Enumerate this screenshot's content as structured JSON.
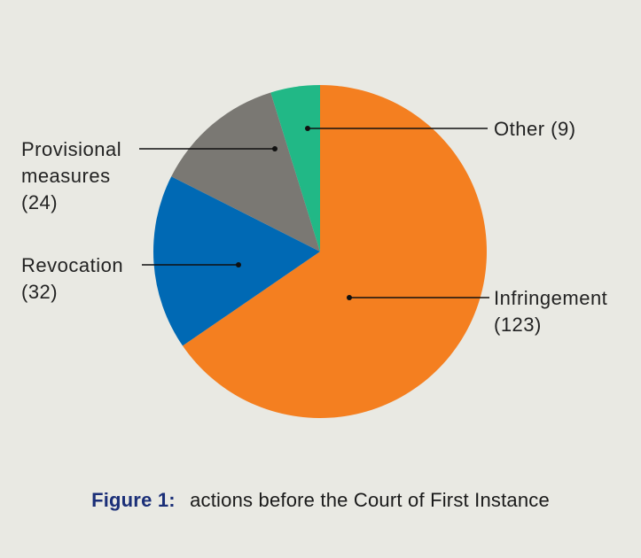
{
  "chart_data": {
    "type": "pie",
    "title": "",
    "slices": [
      {
        "label_lines": [
          "Infringement",
          "(123)"
        ],
        "value": 123,
        "color": "#f47f20"
      },
      {
        "label_lines": [
          "Revocation",
          "(32)"
        ],
        "value": 32,
        "color": "#0069b4"
      },
      {
        "label_lines": [
          "Provisional",
          "measures",
          "(24)"
        ],
        "value": 24,
        "color": "#7a7873"
      },
      {
        "label_lines": [
          "Other (9)"
        ],
        "value": 9,
        "color": "#21b886"
      }
    ],
    "start_angle_deg": 0,
    "direction": "clockwise"
  },
  "caption": {
    "prefix": "Figure 1:",
    "text": "actions before the Court of First Instance"
  }
}
